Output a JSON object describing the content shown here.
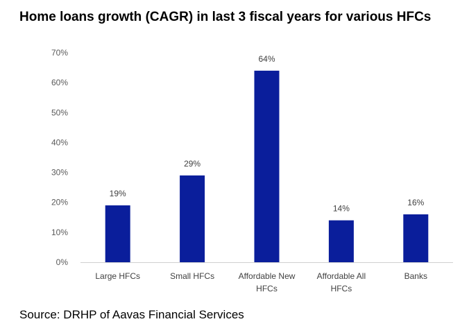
{
  "chart_data": {
    "type": "bar",
    "title": "Home loans growth (CAGR) in last 3 fiscal years for various HFCs",
    "categories": [
      [
        "Large HFCs"
      ],
      [
        "Small HFCs"
      ],
      [
        "Affordable New",
        "HFCs"
      ],
      [
        "Affordable All",
        "HFCs"
      ],
      [
        "Banks"
      ]
    ],
    "values": [
      19,
      29,
      64,
      14,
      16
    ],
    "data_labels": [
      "19%",
      "29%",
      "64%",
      "14%",
      "16%"
    ],
    "ylim": [
      0,
      70
    ],
    "yticks": [
      0,
      10,
      20,
      30,
      40,
      50,
      60,
      70
    ],
    "ytick_labels": [
      "0%",
      "10%",
      "20%",
      "30%",
      "40%",
      "50%",
      "60%",
      "70%"
    ],
    "grid": false,
    "bar_color": "#0A1E9B",
    "source": "Source: DRHP of Aavas Financial Services"
  }
}
